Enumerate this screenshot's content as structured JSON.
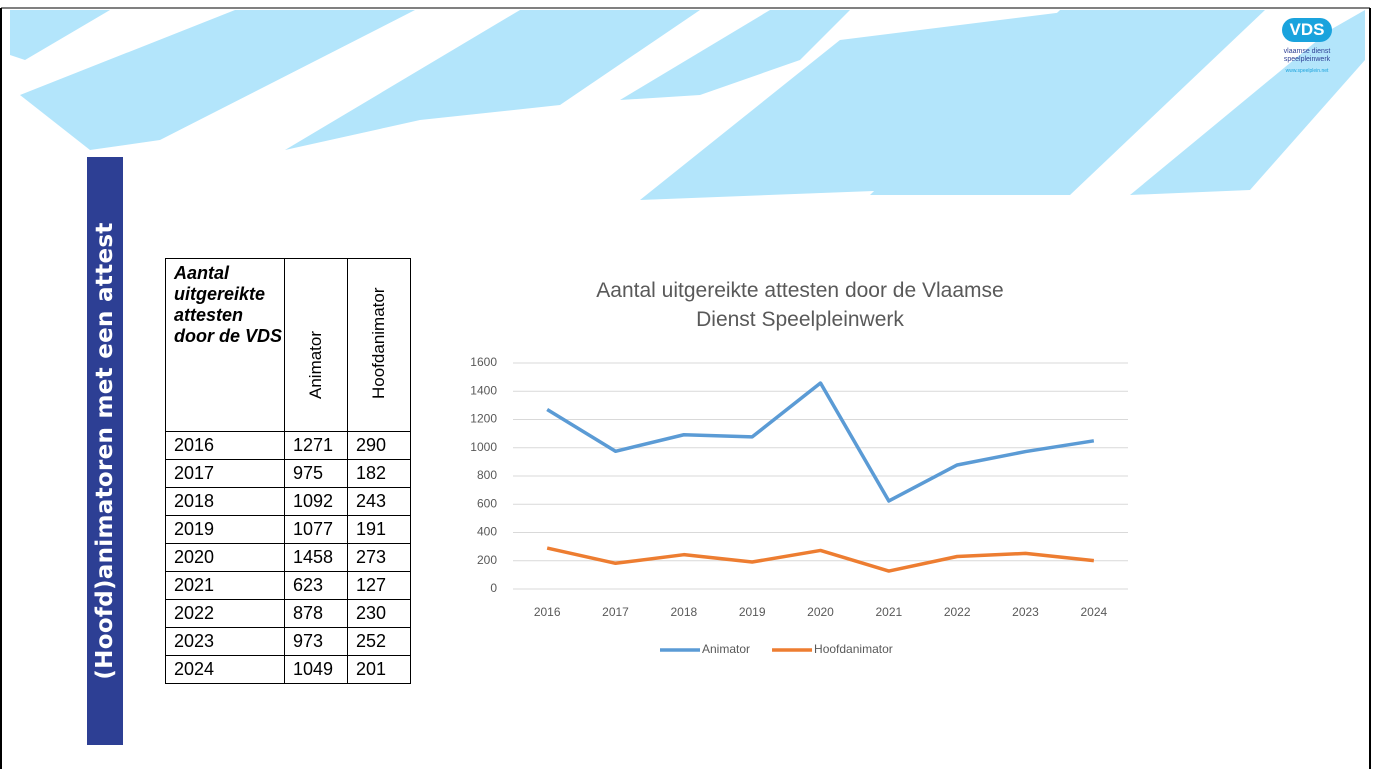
{
  "slide_title": "(Hoofd)animatoren met een attest",
  "logo": {
    "mark": "VDS",
    "name": "vlaamse dienst speelpleinwerk",
    "url": "www.speelplein.net"
  },
  "table": {
    "header": [
      "Aantal uitgereikte attesten door de VDS",
      "Animator",
      "Hoofdanimator"
    ],
    "rows": [
      [
        2016,
        1271,
        290
      ],
      [
        2017,
        975,
        182
      ],
      [
        2018,
        1092,
        243
      ],
      [
        2019,
        1077,
        191
      ],
      [
        2020,
        1458,
        273
      ],
      [
        2021,
        623,
        127
      ],
      [
        2022,
        878,
        230
      ],
      [
        2023,
        973,
        252
      ],
      [
        2024,
        1049,
        201
      ]
    ]
  },
  "chart_data": {
    "type": "line",
    "title": "Aantal uitgereikte attesten door de Vlaamse Dienst Speelpleinwerk",
    "categories": [
      "2016",
      "2017",
      "2018",
      "2019",
      "2020",
      "2021",
      "2022",
      "2023",
      "2024"
    ],
    "series": [
      {
        "name": "Animator",
        "color": "#5b9bd5",
        "values": [
          1271,
          975,
          1092,
          1077,
          1458,
          623,
          878,
          973,
          1049
        ]
      },
      {
        "name": "Hoofdanimator",
        "color": "#ed7d31",
        "values": [
          290,
          182,
          243,
          191,
          273,
          127,
          230,
          252,
          201
        ]
      }
    ],
    "ylim": [
      0,
      1600
    ],
    "yticks": [
      0,
      200,
      400,
      600,
      800,
      1000,
      1200,
      1400,
      1600
    ],
    "grid": true,
    "legend": "bottom"
  }
}
